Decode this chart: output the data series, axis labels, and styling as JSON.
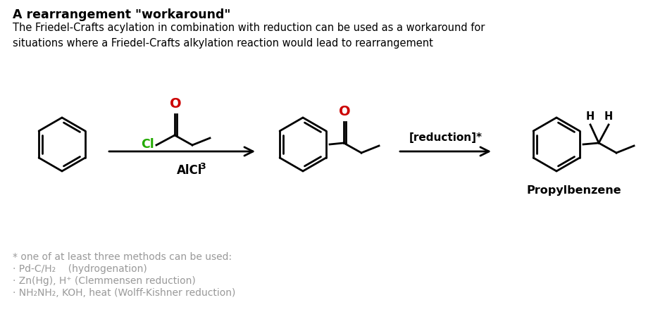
{
  "title": "A rearrangement \"workaround\"",
  "subtitle": "The Friedel-Crafts acylation in combination with reduction can be used as a workaround for\nsituations where a Friedel-Crafts alkylation reaction would lead to rearrangement",
  "title_fontsize": 12.5,
  "subtitle_fontsize": 10.5,
  "arrow2_label": "[reduction]*",
  "product_label": "Propylbenzene",
  "footnote_line1": "* one of at least three methods can be used:",
  "footnote_line2": "· Pd-C/H₂    (hydrogenation)",
  "footnote_line3": "· Zn(Hg), H⁺ (Clemmensen reduction)",
  "footnote_line4": "· NH₂NH₂, KOH, heat (Wolff-Kishner reduction)",
  "color_black": "#000000",
  "color_red": "#cc0000",
  "color_green": "#22aa00",
  "color_gray": "#999999",
  "bg_color": "#ffffff"
}
